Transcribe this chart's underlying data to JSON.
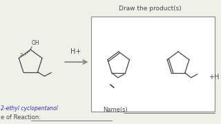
{
  "title_products": "Draw the product(s)",
  "reagent": "H+",
  "reactant_label": "2-ethyl cyclopentanol",
  "names_label": "Name(s)",
  "reaction_type_label": "e of Reaction:",
  "plus_h2o": "+H",
  "background_color": "#f0f0eb",
  "box_color": "#888888",
  "ink_color": "#444444"
}
